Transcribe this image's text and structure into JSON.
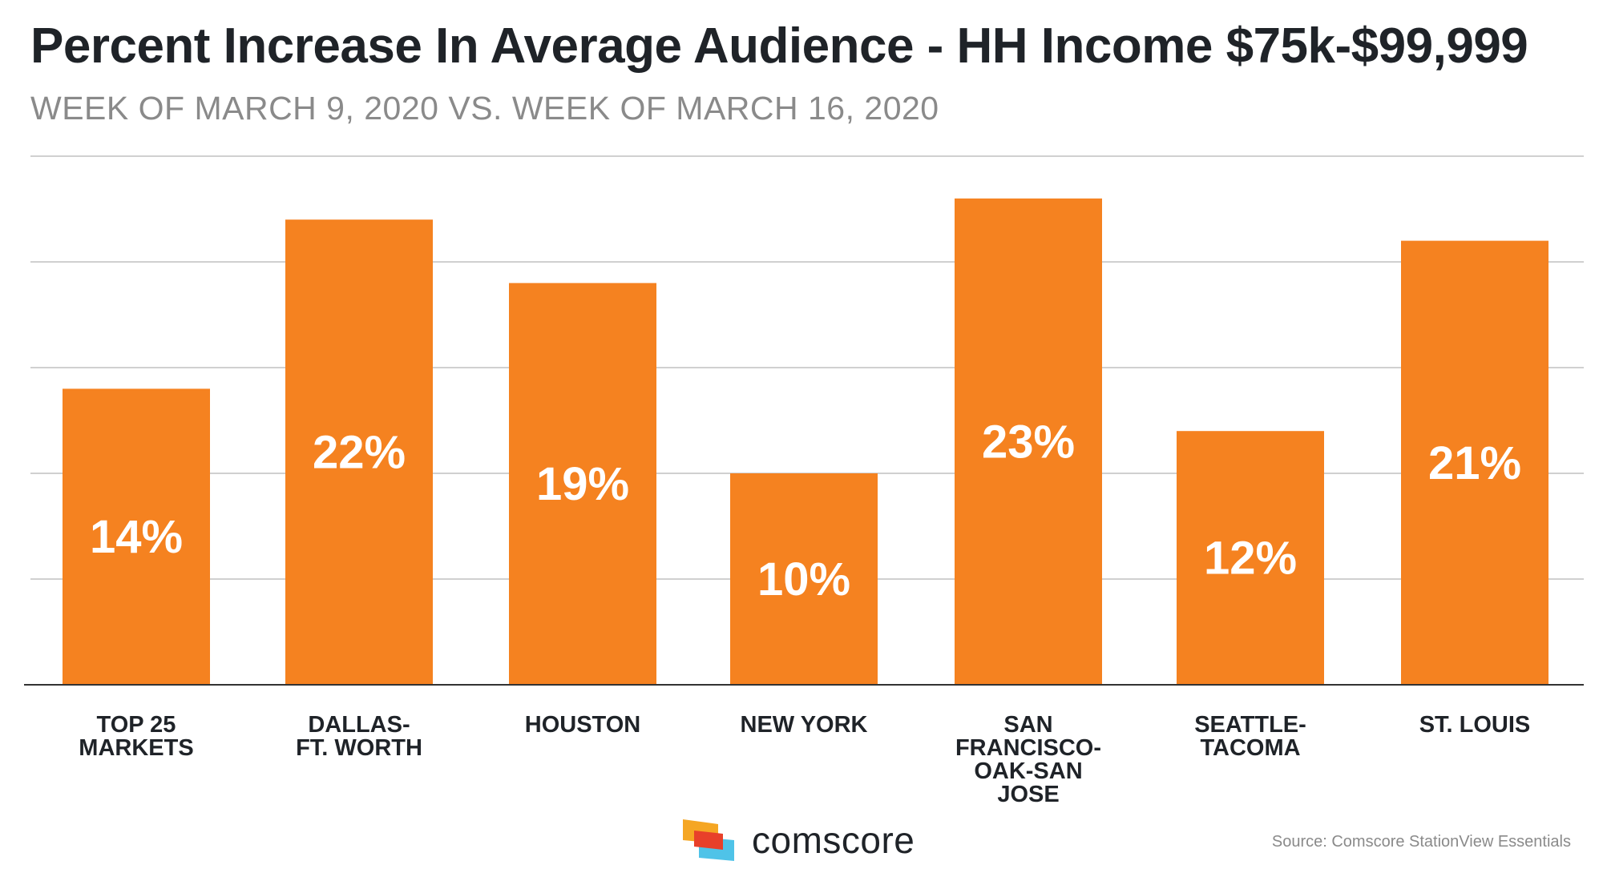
{
  "header": {
    "title": "Percent Increase In Average Audience - HH Income $75k-$99,999",
    "subtitle": "WEEK OF MARCH 9, 2020 VS. WEEK OF MARCH 16, 2020"
  },
  "chart_data": {
    "type": "bar",
    "title": "Percent Increase In Average Audience - HH Income $75k-$99,999",
    "subtitle": "WEEK OF MARCH 9, 2020 VS. WEEK OF MARCH 16, 2020",
    "categories": [
      [
        "TOP 25",
        "MARKETS"
      ],
      [
        "DALLAS-",
        "FT. WORTH"
      ],
      [
        "HOUSTON"
      ],
      [
        "NEW YORK"
      ],
      [
        "SAN",
        "FRANCISCO-",
        "OAK-SAN",
        "JOSE"
      ],
      [
        "SEATTLE-",
        "TACOMA"
      ],
      [
        "ST. LOUIS"
      ]
    ],
    "values": [
      14,
      22,
      19,
      10,
      23,
      12,
      21
    ],
    "value_labels": [
      "14%",
      "22%",
      "19%",
      "10%",
      "23%",
      "12%",
      "21%"
    ],
    "ylim": [
      0,
      25
    ],
    "grid": true,
    "bar_color": "#f58220"
  },
  "branding": {
    "logo_text": "comscore",
    "logo_icon": "comscore-logo-icon"
  },
  "footer": {
    "source": "Source: Comscore StationView Essentials"
  },
  "colors": {
    "bar": "#f58220",
    "title": "#1f2328",
    "subtitle": "#8a8a8a",
    "grid": "#d0d0d0",
    "axis": "#333333"
  }
}
